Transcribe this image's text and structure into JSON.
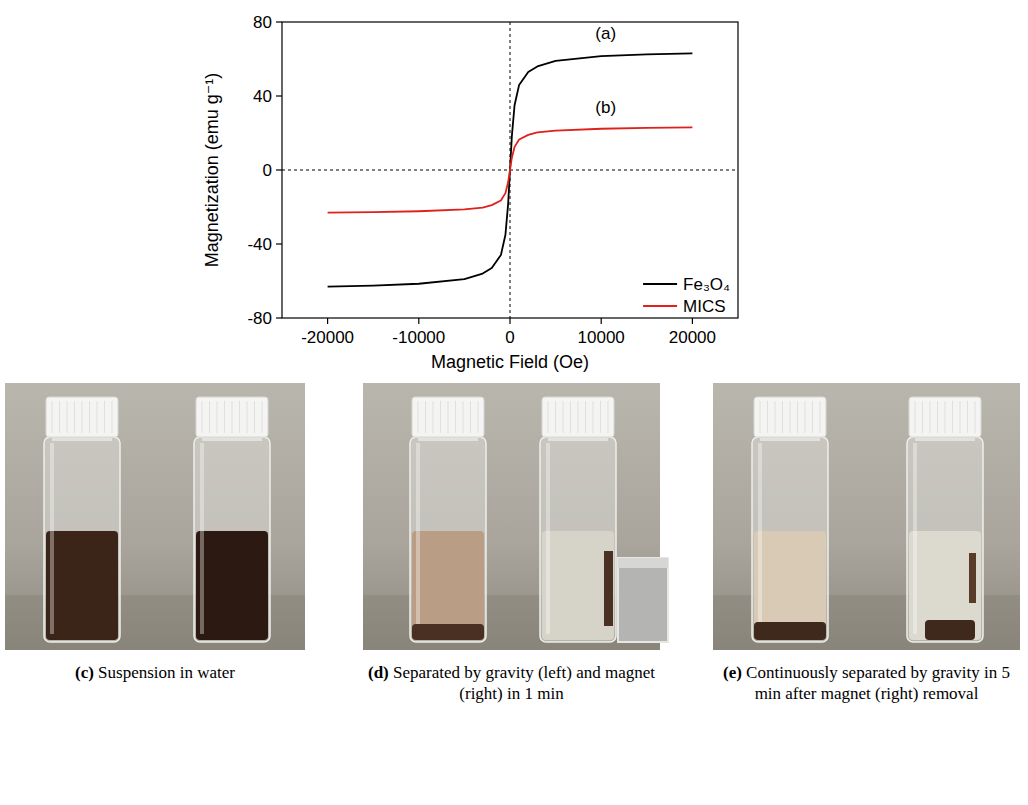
{
  "chart_data": {
    "type": "line",
    "x_label": "Magnetic Field (Oe)",
    "y_label": "Magnetization (emu g⁻¹)",
    "xlim": [
      -25000,
      25000
    ],
    "xticks": [
      -20000,
      -10000,
      0,
      10000,
      20000
    ],
    "ylim": [
      -80,
      80
    ],
    "yticks": [
      -80,
      -40,
      0,
      40,
      80
    ],
    "legend": "lower right",
    "x": [
      -20000,
      -15000,
      -10000,
      -5000,
      -3000,
      -2000,
      -1000,
      -500,
      -200,
      0,
      200,
      500,
      1000,
      2000,
      3000,
      5000,
      10000,
      15000,
      20000
    ],
    "series": [
      {
        "name": "Fe₃O₄",
        "color": "#000000",
        "values": [
          -63,
          -62.5,
          -61.5,
          -59,
          -56,
          -53,
          -46,
          -35,
          -18,
          0,
          18,
          35,
          46,
          53,
          56,
          59,
          61.5,
          62.5,
          63
        ]
      },
      {
        "name": "MICS",
        "color": "#e0201b",
        "values": [
          -23,
          -22.8,
          -22.3,
          -21.3,
          -20.3,
          -19,
          -16.5,
          -12.5,
          -6.5,
          0,
          6.5,
          12.5,
          16.5,
          19,
          20.3,
          21.3,
          22.3,
          22.8,
          23
        ]
      }
    ],
    "annotations": [
      {
        "text": "(a)",
        "x": 10500,
        "y": 71
      },
      {
        "text": "(b)",
        "x": 10500,
        "y": 31
      }
    ]
  },
  "photos": [
    {
      "letter": "(c)",
      "caption": "Suspension in water"
    },
    {
      "letter": "(d)",
      "caption": "Separated by gravity (left) and magnet (right) in 1 min"
    },
    {
      "letter": "(e)",
      "caption": "Continuously separated by gravity in 5 min after magnet (right) removal"
    }
  ]
}
